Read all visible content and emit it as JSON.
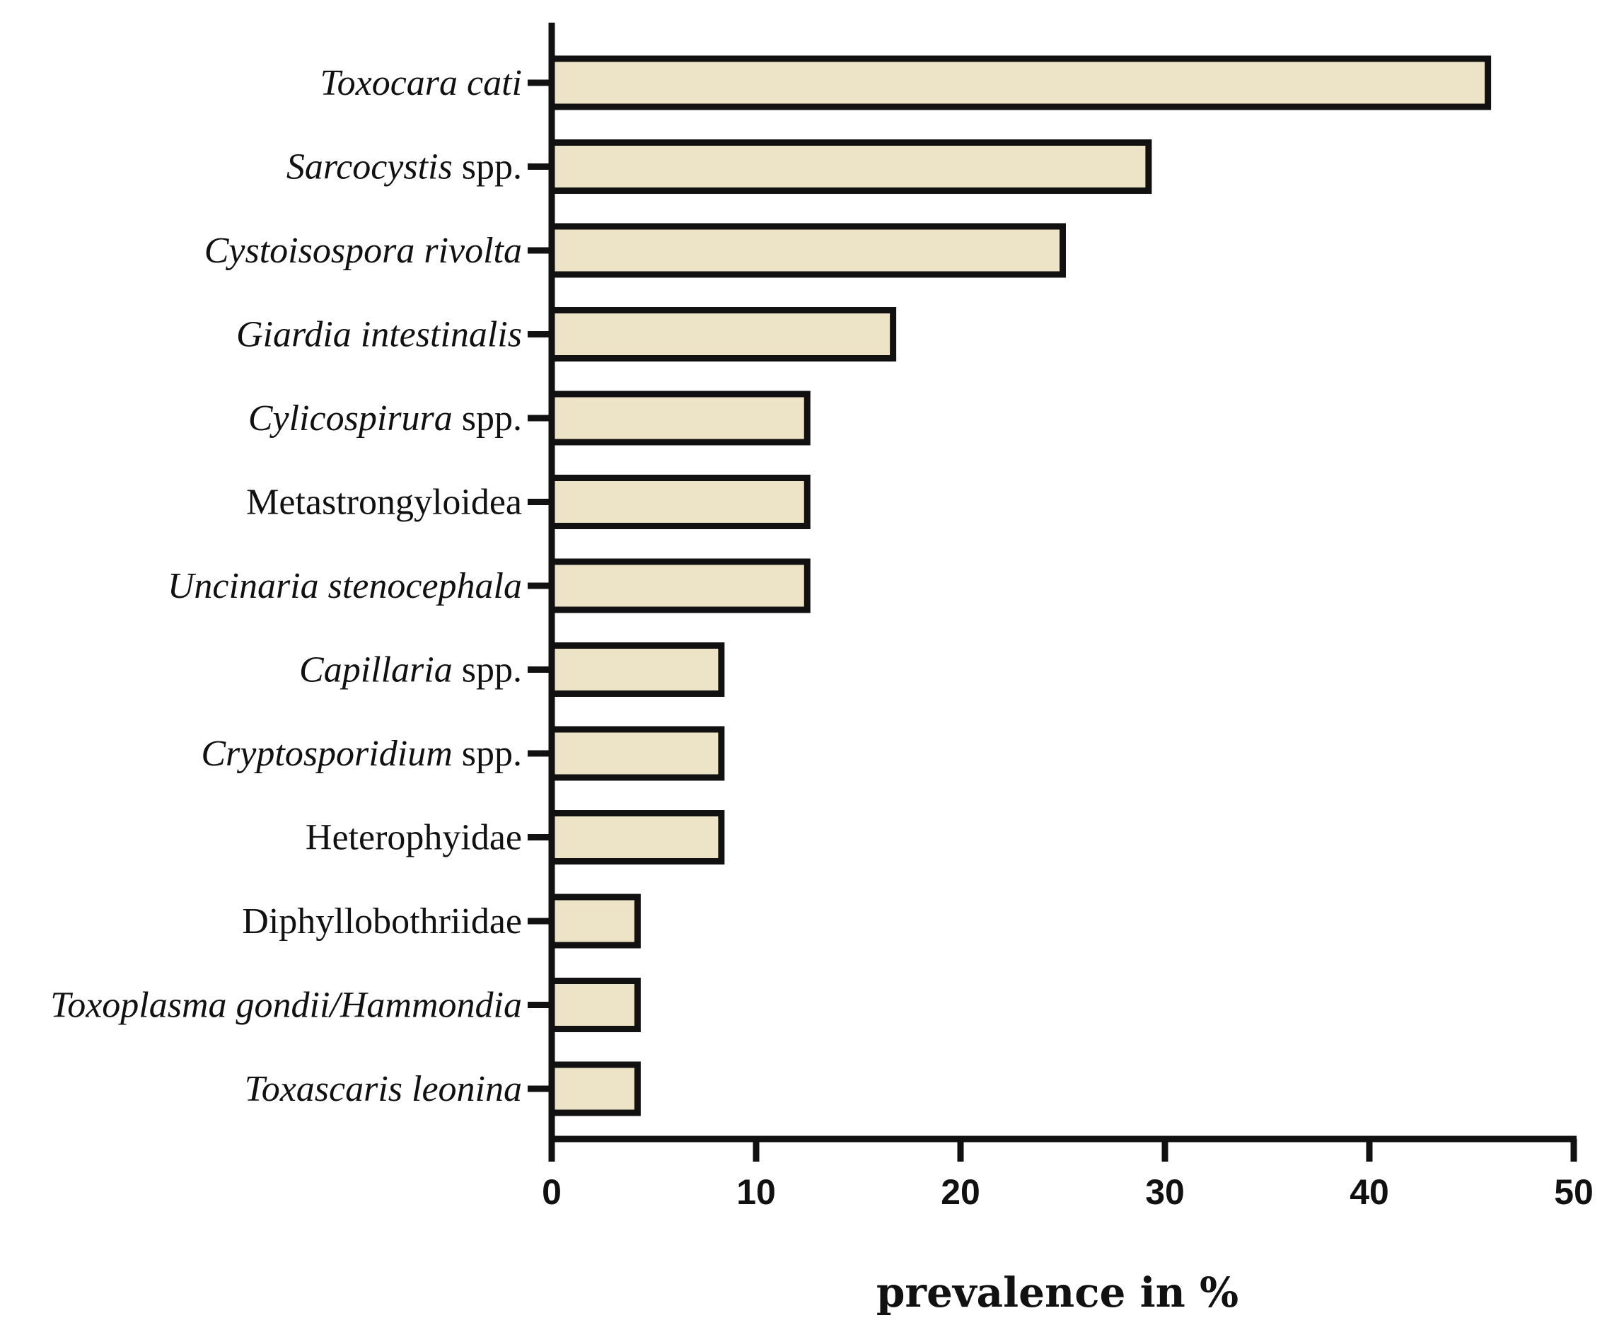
{
  "chart_data": {
    "type": "bar",
    "orientation": "horizontal",
    "categories": [
      [
        {
          "text": "Toxocara cati",
          "italic": true
        }
      ],
      [
        {
          "text": "Sarcocystis",
          "italic": true
        },
        {
          "text": " spp.",
          "italic": false
        }
      ],
      [
        {
          "text": "Cystoisospora rivolta",
          "italic": true
        }
      ],
      [
        {
          "text": "Giardia intestinalis",
          "italic": true
        }
      ],
      [
        {
          "text": "Cylicospirura",
          "italic": true
        },
        {
          "text": " spp.",
          "italic": false
        }
      ],
      [
        {
          "text": "Metastrongyloidea",
          "italic": false
        }
      ],
      [
        {
          "text": "Uncinaria stenocephala",
          "italic": true
        }
      ],
      [
        {
          "text": "Capillaria",
          "italic": true
        },
        {
          "text": " spp.",
          "italic": false
        }
      ],
      [
        {
          "text": "Cryptosporidium",
          "italic": true
        },
        {
          "text": " spp.",
          "italic": false
        }
      ],
      [
        {
          "text": "Heterophyidae",
          "italic": false
        }
      ],
      [
        {
          "text": "Diphyllobothriidae",
          "italic": false
        }
      ],
      [
        {
          "text": "Toxoplasma gondii/Hammondia",
          "italic": true
        }
      ],
      [
        {
          "text": "Toxascaris leonina",
          "italic": true
        }
      ]
    ],
    "values": [
      45.8,
      29.2,
      25.0,
      16.7,
      12.5,
      12.5,
      12.5,
      8.3,
      8.3,
      8.3,
      4.2,
      4.2,
      4.2
    ],
    "xlabel": "prevalence in %",
    "xlim": [
      0,
      50
    ],
    "xticks": [
      "0",
      "10",
      "20",
      "30",
      "40",
      "50"
    ],
    "grid": false,
    "bar_fill": "#ede4c8",
    "bar_stroke": "#111111"
  }
}
